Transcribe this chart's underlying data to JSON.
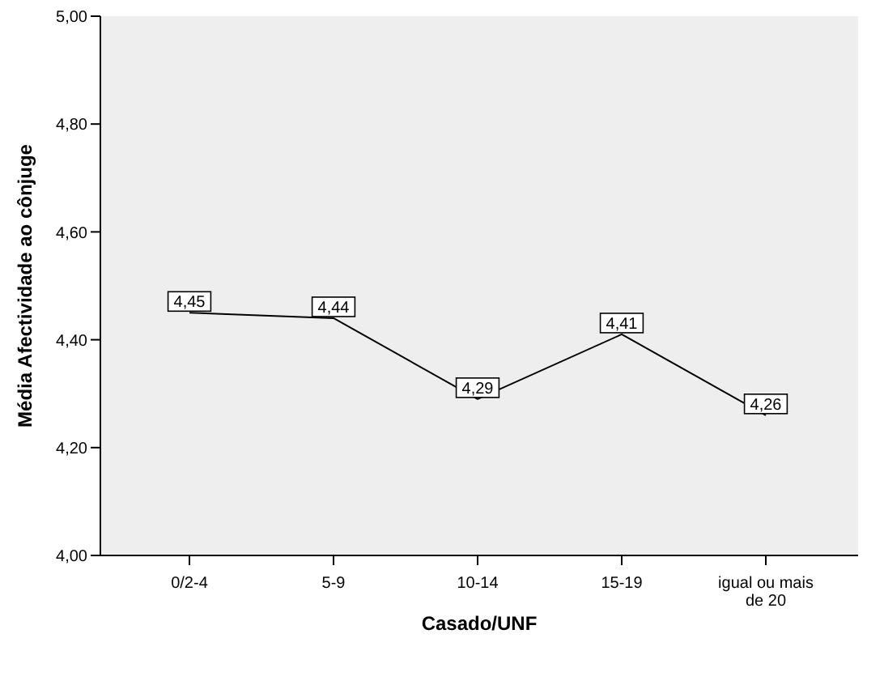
{
  "chart_data": {
    "type": "line",
    "xlabel": "Casado/UNF",
    "ylabel": "Média Afectividade ao cônjuge",
    "categories": [
      "0/2-4",
      "5-9",
      "10-14",
      "15-19",
      "igual ou mais de 20"
    ],
    "series": [
      {
        "color": "#000000",
        "values": [
          4.45,
          4.44,
          4.29,
          4.41,
          4.26
        ],
        "value_labels": [
          "4,45",
          "4,44",
          "4,29",
          "4,41",
          "4,26"
        ]
      }
    ],
    "ylim": [
      4,
      5
    ],
    "yticks": [
      {
        "value": 4,
        "label": "4,00"
      },
      {
        "value": 4.2,
        "label": "4,20"
      },
      {
        "value": 4.4,
        "label": "4,40"
      },
      {
        "value": 4.6,
        "label": "4,60"
      },
      {
        "value": 4.8,
        "label": "4,80"
      },
      {
        "value": 5,
        "label": "5,00"
      }
    ],
    "grid": false,
    "legend": false,
    "marker": "none",
    "line_style": "solid"
  }
}
